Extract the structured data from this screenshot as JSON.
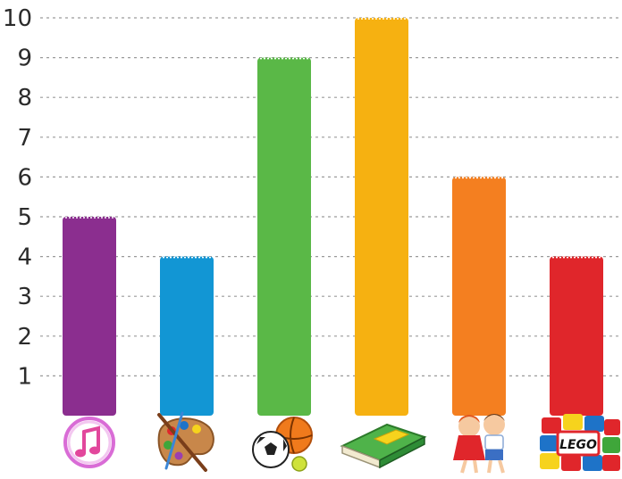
{
  "chart_data": {
    "type": "bar",
    "categories": [
      "music",
      "art",
      "sports",
      "reading",
      "dancing",
      "lego"
    ],
    "values": [
      5,
      4,
      9,
      10,
      6,
      4
    ],
    "ylim": [
      0,
      10
    ],
    "yticks": [
      1,
      2,
      3,
      4,
      5,
      6,
      7,
      8,
      9,
      10
    ],
    "grid": true,
    "colors": [
      "#8b2e8f",
      "#1296d4",
      "#5ab847",
      "#f6b111",
      "#f47f20",
      "#e0262b"
    ],
    "icons": [
      "itunes-music-icon",
      "paint-palette-icon",
      "sports-balls-icon",
      "book-icon",
      "dancing-children-icon",
      "lego-bricks-icon"
    ],
    "icon_text": {
      "lego": "LEGO"
    }
  }
}
